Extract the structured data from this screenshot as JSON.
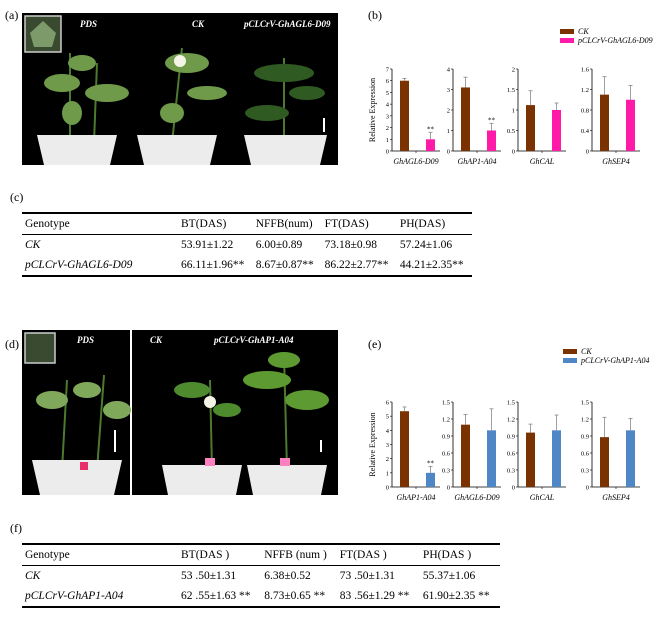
{
  "panels": {
    "a": "(a)",
    "b": "(b)",
    "c": "(c)",
    "d": "(d)",
    "e": "(e)",
    "f": "(f)"
  },
  "photo_a": {
    "labels": [
      "PDS",
      "CK",
      "pCLCrV-GhAGL6-D09"
    ]
  },
  "photo_d": {
    "labels": [
      "PDS",
      "CK",
      "pCLCrV-GhAP1-A04"
    ]
  },
  "table_c": {
    "headers": [
      "Genotype",
      "BT(DAS)",
      "NFFB(num)",
      "FT(DAS)",
      "PH(DAS)"
    ],
    "rows": [
      [
        "CK",
        "53.91±1.22",
        "6.00±0.89",
        "73.18±0.98",
        "57.24±1.06"
      ],
      [
        "pCLCrV-GhAGL6-D09",
        "66.11±1.96**",
        "8.67±0.87**",
        "86.22±2.77**",
        "44.21±2.35**"
      ]
    ]
  },
  "table_f": {
    "headers": [
      "Genotype",
      "BT(DAS )",
      "NFFB (num )",
      "FT(DAS )",
      "PH(DAS )"
    ],
    "rows": [
      [
        "CK",
        "53 .50±1.31",
        "6.38±0.52",
        "73 .50±1.31",
        "55.37±1.06"
      ],
      [
        "pCLCrV-GhAP1-A04",
        "62 .55±1.63 **",
        "8.73±0.65 **",
        "83 .56±1.29 **",
        "61.90±2.35 **"
      ]
    ]
  },
  "chart_data": [
    {
      "type": "bar",
      "panel": "b",
      "ylabel": "Relative Expression",
      "legend_placement": "top-right",
      "series_names": [
        "CK",
        "pCLCrV-GhAGL6-D09"
      ],
      "colors": [
        "#7a3300",
        "#ff1aa8"
      ],
      "subplots": [
        {
          "gene": "GhAGL6-D09",
          "ylim": [
            0,
            7
          ],
          "ticks": [
            "0",
            "1",
            "2",
            "3",
            "4",
            "5",
            "6",
            "7"
          ],
          "values": [
            6.0,
            1.0
          ],
          "errors": [
            0.2,
            0.6
          ],
          "sig": [
            "",
            "**"
          ]
        },
        {
          "gene": "GhAP1-A04",
          "ylim": [
            0,
            4
          ],
          "ticks": [
            "0",
            "1",
            "2",
            "3",
            "4"
          ],
          "values": [
            3.1,
            1.0
          ],
          "errors": [
            0.5,
            0.35
          ],
          "sig": [
            "",
            "**"
          ]
        },
        {
          "gene": "GhCAL",
          "ylim": [
            0,
            2
          ],
          "ticks": [
            "0",
            "0.5",
            "1",
            "1.5",
            "2"
          ],
          "values": [
            1.12,
            1.0
          ],
          "errors": [
            0.35,
            0.17
          ],
          "sig": [
            "",
            ""
          ]
        },
        {
          "gene": "GhSEP4",
          "ylim": [
            0,
            1.6
          ],
          "ticks": [
            "0",
            "0.4",
            "0.8",
            "1.2",
            "1.6"
          ],
          "values": [
            1.1,
            1.0
          ],
          "errors": [
            0.35,
            0.28
          ],
          "sig": [
            "",
            ""
          ]
        }
      ]
    },
    {
      "type": "bar",
      "panel": "e",
      "ylabel": "Relative Expression",
      "legend_placement": "top-right",
      "series_names": [
        "CK",
        "pCLCrV-GhAP1-A04"
      ],
      "colors": [
        "#7a3300",
        "#4f86c6"
      ],
      "subplots": [
        {
          "gene": "GhAP1-A04",
          "ylim": [
            0,
            6
          ],
          "ticks": [
            "0",
            "1",
            "2",
            "3",
            "4",
            "5",
            "6"
          ],
          "values": [
            5.35,
            1.0
          ],
          "errors": [
            0.3,
            0.45
          ],
          "sig": [
            "",
            "**"
          ]
        },
        {
          "gene": "GhAGL6-D09",
          "ylim": [
            0,
            1.5
          ],
          "ticks": [
            "0",
            "0.3",
            "0.6",
            "0.9",
            "1.2",
            "1.5"
          ],
          "values": [
            1.1,
            1.0
          ],
          "errors": [
            0.18,
            0.38
          ],
          "sig": [
            "",
            ""
          ]
        },
        {
          "gene": "GhCAL",
          "ylim": [
            0,
            1.5
          ],
          "ticks": [
            "0",
            "0.3",
            "0.6",
            "0.9",
            "1.2",
            "1.5"
          ],
          "values": [
            0.96,
            1.0
          ],
          "errors": [
            0.15,
            0.27
          ],
          "sig": [
            "",
            ""
          ]
        },
        {
          "gene": "GhSEP4",
          "ylim": [
            0,
            1.5
          ],
          "ticks": [
            "0",
            "0.3",
            "0.6",
            "0.9",
            "1.2",
            "1.5"
          ],
          "values": [
            0.88,
            1.0
          ],
          "errors": [
            0.35,
            0.21
          ],
          "sig": [
            "",
            ""
          ]
        }
      ]
    }
  ]
}
